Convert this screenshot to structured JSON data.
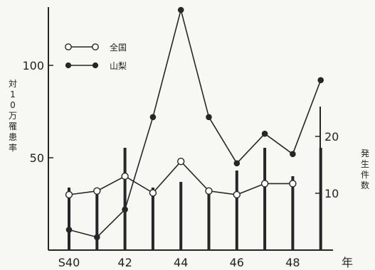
{
  "chart_data": {
    "type": "line",
    "x": [
      "S40",
      "41",
      "42",
      "43",
      "44",
      "45",
      "46",
      "47",
      "48",
      "49"
    ],
    "x_tick_labels": [
      "S40",
      "42",
      "44",
      "46",
      "48"
    ],
    "xlabel": "年",
    "ylabel_left": "対10万罹患率",
    "ylabel_right": "発生件数",
    "ylim_left": [
      0,
      135
    ],
    "ylim_right": [
      0,
      35
    ],
    "left_ticks": [
      50,
      100
    ],
    "right_ticks": [
      10,
      20
    ],
    "legend_placement": "top-left",
    "series": [
      {
        "name": "全国",
        "marker": "open-circle",
        "axis": "left",
        "values": [
          30,
          32,
          40,
          31,
          48,
          32,
          30,
          36,
          36,
          null
        ]
      },
      {
        "name": "山梨",
        "marker": "filled-circle",
        "axis": "left",
        "values": [
          11,
          7,
          22,
          72,
          130,
          72,
          47,
          63,
          52,
          92
        ]
      }
    ],
    "bars": {
      "name": "発生件数",
      "axis": "right",
      "values": [
        11,
        10,
        18,
        11,
        12,
        10,
        14,
        18,
        13,
        18
      ]
    },
    "bar_values_right_units": [
      11,
      10,
      18,
      11,
      12,
      10,
      14,
      18,
      13,
      18
    ]
  },
  "colors": {
    "ink": "#262626",
    "open_marker_fill": "#ffffff",
    "background": "#f7f7f4"
  }
}
